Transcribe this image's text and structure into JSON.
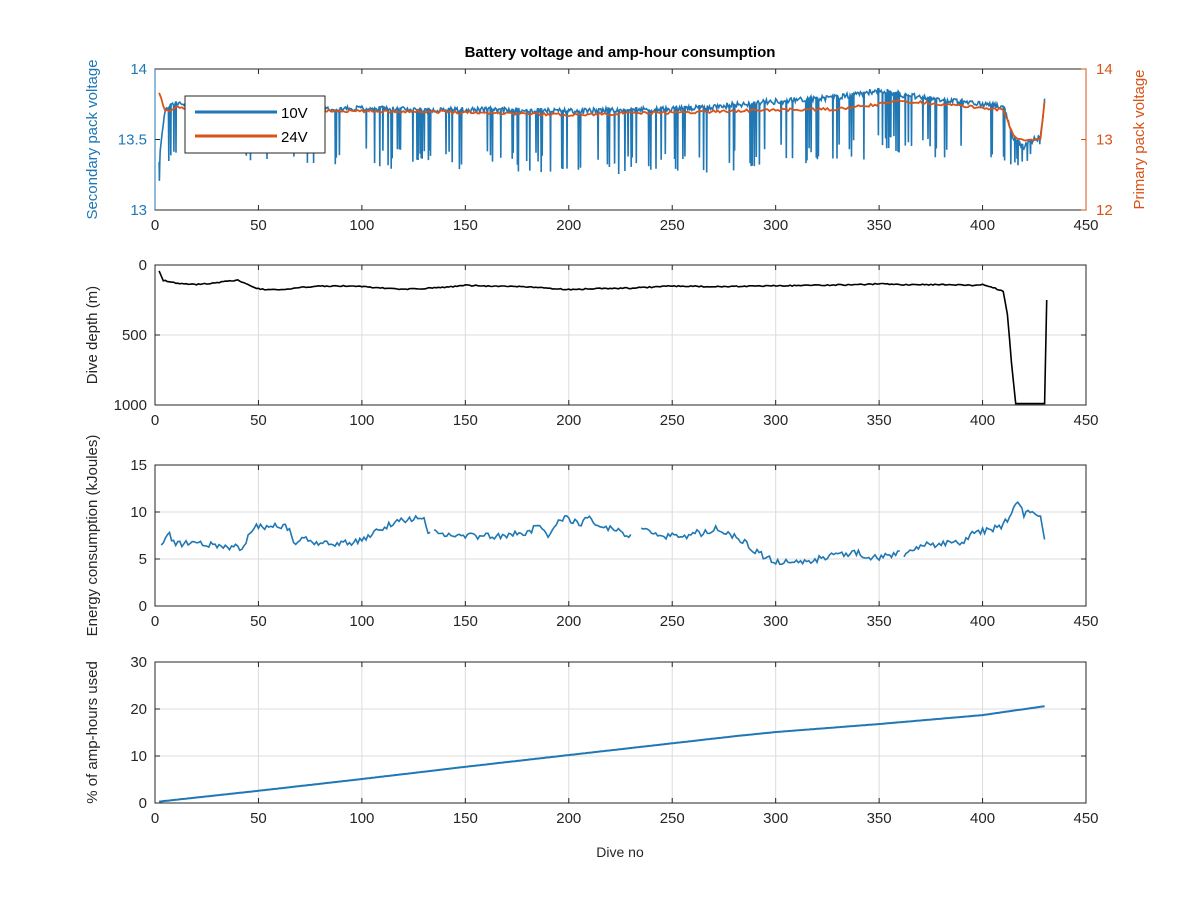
{
  "figure": {
    "title": "Battery voltage and amp-hour consumption",
    "xlabel": "Dive no"
  },
  "colors": {
    "blue": "#1f77b4",
    "orange": "#d95319",
    "black": "#000000",
    "grid": "#dcdcdc",
    "axis": "#262626"
  },
  "chart_data": [
    {
      "type": "line",
      "title": "Battery voltage and amp-hour consumption",
      "xlabel": "",
      "ylabel": "Secondary pack voltage",
      "ylabel_right": "Primary pack voltage",
      "xlim": [
        0,
        450
      ],
      "ylim": [
        13,
        14
      ],
      "ylim_right": [
        12,
        14
      ],
      "xticks": [
        0,
        50,
        100,
        150,
        200,
        250,
        300,
        350,
        400,
        450
      ],
      "yticks": [
        13,
        13.5,
        14
      ],
      "yticks_right": [
        12,
        13,
        14
      ],
      "grid": false,
      "legend": "top-left",
      "series": [
        {
          "name": "10V",
          "axis": "left",
          "color": "#1f77b4",
          "style": "spiky",
          "x": [
            2,
            5,
            10,
            20,
            40,
            60,
            80,
            100,
            130,
            160,
            200,
            230,
            260,
            300,
            330,
            350,
            360,
            380,
            400,
            410,
            415,
            420,
            425,
            428,
            430
          ],
          "base": [
            13.35,
            13.72,
            13.76,
            13.74,
            13.73,
            13.73,
            13.72,
            13.72,
            13.71,
            13.71,
            13.7,
            13.71,
            13.72,
            13.77,
            13.8,
            13.85,
            13.82,
            13.78,
            13.75,
            13.74,
            13.5,
            13.45,
            13.5,
            13.52,
            13.78
          ],
          "low": [
            13.2,
            13.3,
            13.32,
            13.35,
            13.34,
            13.33,
            13.32,
            13.3,
            13.28,
            13.28,
            13.25,
            13.24,
            13.24,
            13.32,
            13.33,
            13.36,
            13.36,
            13.35,
            13.34,
            13.32,
            13.3,
            13.3,
            13.44,
            13.46,
            13.5
          ]
        },
        {
          "name": "24V",
          "axis": "right",
          "color": "#d95319",
          "x": [
            2,
            5,
            10,
            20,
            40,
            60,
            80,
            100,
            130,
            160,
            200,
            230,
            260,
            300,
            330,
            350,
            360,
            380,
            400,
            410,
            415,
            420,
            425,
            428,
            430
          ],
          "y": [
            13.65,
            13.4,
            13.45,
            13.42,
            13.44,
            13.42,
            13.41,
            13.4,
            13.4,
            13.38,
            13.35,
            13.37,
            13.39,
            13.42,
            13.43,
            13.5,
            13.55,
            13.5,
            13.45,
            13.42,
            13.05,
            12.98,
            13.0,
            13.02,
            13.55
          ]
        }
      ]
    },
    {
      "type": "line",
      "title": "",
      "xlabel": "",
      "ylabel": "Dive depth (m)",
      "xlim": [
        0,
        450
      ],
      "ylim": [
        0,
        1000
      ],
      "y_reversed": true,
      "xticks": [
        0,
        50,
        100,
        150,
        200,
        250,
        300,
        350,
        400,
        450
      ],
      "yticks": [
        0,
        500,
        1000
      ],
      "grid": true,
      "series": [
        {
          "color": "#000000",
          "x": [
            2,
            4,
            10,
            20,
            30,
            40,
            50,
            60,
            70,
            80,
            90,
            100,
            120,
            140,
            150,
            160,
            180,
            200,
            210,
            230,
            250,
            270,
            300,
            320,
            340,
            350,
            360,
            380,
            395,
            400,
            405,
            410,
            412,
            414,
            416,
            425,
            429,
            430,
            431
          ],
          "y": [
            40,
            110,
            130,
            140,
            125,
            110,
            170,
            180,
            160,
            150,
            150,
            155,
            175,
            160,
            145,
            150,
            155,
            175,
            170,
            165,
            150,
            155,
            148,
            145,
            140,
            135,
            140,
            140,
            145,
            140,
            160,
            190,
            350,
            700,
            990,
            990,
            990,
            990,
            250
          ]
        }
      ]
    },
    {
      "type": "line",
      "title": "",
      "xlabel": "",
      "ylabel": "Energy consumption (kJoules)",
      "xlim": [
        0,
        450
      ],
      "ylim": [
        0,
        15
      ],
      "xticks": [
        0,
        50,
        100,
        150,
        200,
        250,
        300,
        350,
        400,
        450
      ],
      "yticks": [
        0,
        5,
        10,
        15
      ],
      "grid": true,
      "series": [
        {
          "color": "#1f77b4",
          "segments": [
            {
              "x": [
                3,
                6,
                10,
                20,
                30,
                40,
                42,
                45,
                48,
                55,
                60,
                65,
                68,
                72,
                80,
                90,
                100,
                110,
                115,
                120,
                125,
                130,
                133
              ],
              "y": [
                6.5,
                7.8,
                6.5,
                6.7,
                6.4,
                6.2,
                5.8,
                7.5,
                8.5,
                8.4,
                8.6,
                8.3,
                6.3,
                7.3,
                6.6,
                6.6,
                7.0,
                8.3,
                8.7,
                9.2,
                9.3,
                9.2,
                7.5
              ]
            },
            {
              "x": [
                135,
                140,
                150,
                160,
                170,
                180,
                185,
                190,
                195,
                200,
                205,
                210,
                215,
                220,
                225,
                230
              ],
              "y": [
                8.2,
                7.6,
                7.4,
                7.4,
                7.5,
                7.8,
                8.6,
                7.3,
                9.2,
                9.3,
                8.6,
                9.6,
                8.4,
                8.3,
                7.8,
                7.4
              ]
            },
            {
              "x": [
                235,
                240,
                245,
                250,
                255,
                260,
                265,
                270,
                275,
                280,
                285,
                290,
                300,
                310,
                320,
                330,
                340,
                345,
                350,
                355,
                360
              ],
              "y": [
                8.4,
                7.5,
                7.3,
                7.4,
                7.2,
                8.0,
                7.7,
                8.3,
                7.7,
                7.4,
                6.9,
                5.8,
                4.7,
                4.6,
                5.0,
                5.5,
                5.6,
                5.3,
                5.0,
                5.5,
                5.6
              ]
            },
            {
              "x": [
                362,
                370,
                380,
                390,
                395,
                400,
                405,
                410,
                413,
                416,
                420,
                425,
                428,
                430
              ],
              "y": [
                5.4,
                6.4,
                6.6,
                6.8,
                7.6,
                8.0,
                8.2,
                8.6,
                9.6,
                11.2,
                9.8,
                10.0,
                9.6,
                7.1
              ]
            }
          ]
        }
      ]
    },
    {
      "type": "line",
      "title": "",
      "xlabel": "Dive no",
      "ylabel": "% of amp-hours used",
      "xlim": [
        0,
        450
      ],
      "ylim": [
        0,
        30
      ],
      "xticks": [
        0,
        50,
        100,
        150,
        200,
        250,
        300,
        350,
        400,
        450
      ],
      "yticks": [
        0,
        10,
        20,
        30
      ],
      "grid": true,
      "series": [
        {
          "color": "#1f77b4",
          "x": [
            2,
            50,
            100,
            150,
            200,
            250,
            280,
            300,
            350,
            400,
            430
          ],
          "y": [
            0.3,
            2.6,
            5.1,
            7.7,
            10.2,
            12.7,
            14.2,
            15.1,
            16.8,
            18.7,
            20.6
          ]
        }
      ]
    }
  ]
}
